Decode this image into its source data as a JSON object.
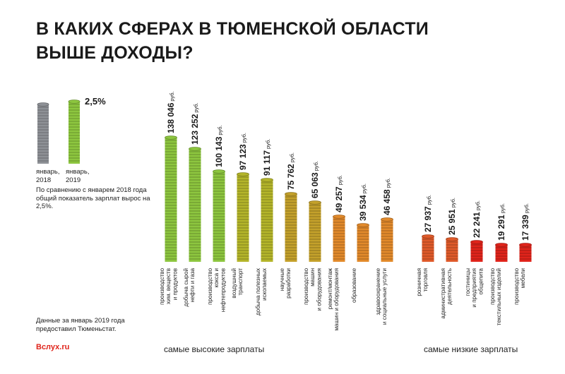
{
  "header": {
    "title_line1": "В КАКИХ СФЕРАХ В ТЮМЕНСКОЙ ОБЛАСТИ",
    "title_line2": "ВЫШЕ ДОХОДЫ?"
  },
  "comparison": {
    "growth_label": "2,5%",
    "label_2018": "январь, 2018",
    "label_2019": "январь, 2019",
    "note": "По сравнению с январем 2018 года общий показатель зарплат вырос на 2,5%."
  },
  "footer": {
    "source_note": "Данные за январь 2019 года предоставил Тюменьстат.",
    "brand": "Вслух.ru",
    "high_caption": "самые высокие зарплаты",
    "low_caption": "самые низкие зарплаты"
  },
  "colors": {
    "coin_gray": "#8e9196",
    "green": "#8dc63f",
    "yellow_green": "#b4b52a",
    "olive": "#c4a12b",
    "orange": "#e28a2b",
    "red_orange": "#df5a2a",
    "red": "#e0241b"
  },
  "chart_data": {
    "type": "bar",
    "unit": "руб.",
    "groups": [
      "самые высокие зарплаты",
      "самые низкие зарплаты"
    ],
    "categories": [
      "производство хим. веществ и продуктов",
      "добыча сырой нефти и газа",
      "производство кокса и нефтепродуктов",
      "воздушный транспорт",
      "добыча полезных ископаемых",
      "научные разработки",
      "производство машин и оборудования",
      "ремонт/монтаж машин и оборудования",
      "образование",
      "здравоохранение и социальные услуги",
      "розничная торговля",
      "административная деятельность",
      "гостиницы и предприятия общепита",
      "производство текстильных изделий",
      "производство мебели"
    ],
    "values": [
      138046,
      123252,
      100143,
      97123,
      91117,
      75762,
      65063,
      49257,
      39534,
      46458,
      27937,
      25951,
      22241,
      19291,
      17339
    ],
    "value_labels": [
      "138 046",
      "123 252",
      "100 143",
      "97 123",
      "91 117",
      "75 762",
      "65 063",
      "49 257",
      "39 534",
      "46 458",
      "27 937",
      "25 951",
      "22 241",
      "19 291",
      "17 339"
    ],
    "category_labels": [
      [
        "производство",
        "хим. веществ",
        "и продуктов"
      ],
      [
        "добыча сырой",
        "нефти и газа"
      ],
      [
        "производство",
        "кокса и",
        "нефтепродуктов"
      ],
      [
        "воздушный",
        "транспорт"
      ],
      [
        "добыча полезных",
        "ископаемых"
      ],
      [
        "научные",
        "разработки"
      ],
      [
        "производство",
        "машин",
        "и оборудования"
      ],
      [
        "ремонт/монтаж",
        "машин и оборудования"
      ],
      [
        "образование"
      ],
      [
        "здравоохранение",
        "и социальные услуги"
      ],
      [
        "розничная",
        "торговля"
      ],
      [
        "административная",
        "деятельность"
      ],
      [
        "гостиницы",
        "и предприятия",
        "общепита"
      ],
      [
        "производство",
        "текстильных изделий"
      ],
      [
        "производство",
        "мебели"
      ]
    ],
    "color_keys": [
      "green",
      "green",
      "green",
      "yellow_green",
      "yellow_green",
      "olive",
      "olive",
      "orange",
      "orange",
      "orange",
      "red_orange",
      "red_orange",
      "red",
      "red",
      "red"
    ],
    "comparison_stacks": [
      {
        "label": "январь, 2018",
        "color_key": "coin_gray"
      },
      {
        "label": "январь, 2019",
        "color_key": "green"
      }
    ],
    "growth_percent": 2.5
  }
}
